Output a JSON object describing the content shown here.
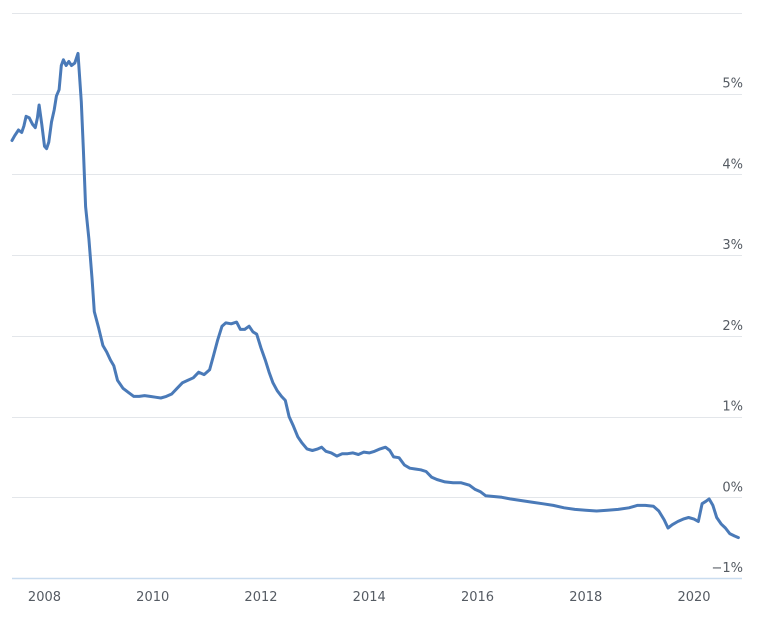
{
  "chart_data": {
    "type": "line",
    "title": "",
    "xlabel": "",
    "ylabel": "",
    "x_tick_labels": [
      "2008",
      "2010",
      "2012",
      "2014",
      "2016",
      "2018",
      "2020"
    ],
    "y_tick_labels": [
      "−1%",
      "0%",
      "1%",
      "2%",
      "3%",
      "4%",
      "5%"
    ],
    "y_tick_values": [
      -1,
      0,
      1,
      2,
      3,
      4,
      5
    ],
    "xlim": [
      2007.4,
      2020.85
    ],
    "ylim": [
      -1,
      6
    ],
    "y_axis_side": "right",
    "grid": true,
    "colors": {
      "series": "#4a7ab8",
      "grid": "#e3e6ea",
      "axis": "#c9dcef",
      "text": "#555b63"
    },
    "series": [
      {
        "values": [
          [
            2007.4,
            4.42
          ],
          [
            2007.45,
            4.48
          ],
          [
            2007.52,
            4.55
          ],
          [
            2007.58,
            4.52
          ],
          [
            2007.62,
            4.6
          ],
          [
            2007.66,
            4.72
          ],
          [
            2007.72,
            4.7
          ],
          [
            2007.78,
            4.62
          ],
          [
            2007.83,
            4.58
          ],
          [
            2007.87,
            4.7
          ],
          [
            2007.9,
            4.86
          ],
          [
            2007.95,
            4.62
          ],
          [
            2008.0,
            4.35
          ],
          [
            2008.04,
            4.32
          ],
          [
            2008.08,
            4.4
          ],
          [
            2008.13,
            4.65
          ],
          [
            2008.18,
            4.8
          ],
          [
            2008.22,
            4.97
          ],
          [
            2008.27,
            5.05
          ],
          [
            2008.31,
            5.35
          ],
          [
            2008.35,
            5.42
          ],
          [
            2008.4,
            5.35
          ],
          [
            2008.45,
            5.4
          ],
          [
            2008.5,
            5.35
          ],
          [
            2008.56,
            5.38
          ],
          [
            2008.62,
            5.5
          ],
          [
            2008.68,
            4.9
          ],
          [
            2008.72,
            4.3
          ],
          [
            2008.76,
            3.6
          ],
          [
            2008.82,
            3.2
          ],
          [
            2008.88,
            2.7
          ],
          [
            2008.92,
            2.3
          ],
          [
            2009.0,
            2.1
          ],
          [
            2009.08,
            1.88
          ],
          [
            2009.15,
            1.8
          ],
          [
            2009.22,
            1.7
          ],
          [
            2009.28,
            1.63
          ],
          [
            2009.35,
            1.45
          ],
          [
            2009.45,
            1.35
          ],
          [
            2009.55,
            1.3
          ],
          [
            2009.65,
            1.25
          ],
          [
            2009.75,
            1.25
          ],
          [
            2009.85,
            1.26
          ],
          [
            2009.95,
            1.25
          ],
          [
            2010.05,
            1.24
          ],
          [
            2010.15,
            1.23
          ],
          [
            2010.25,
            1.25
          ],
          [
            2010.35,
            1.28
          ],
          [
            2010.45,
            1.35
          ],
          [
            2010.55,
            1.42
          ],
          [
            2010.65,
            1.45
          ],
          [
            2010.75,
            1.48
          ],
          [
            2010.85,
            1.55
          ],
          [
            2010.95,
            1.52
          ],
          [
            2011.05,
            1.58
          ],
          [
            2011.12,
            1.75
          ],
          [
            2011.2,
            1.95
          ],
          [
            2011.28,
            2.12
          ],
          [
            2011.35,
            2.16
          ],
          [
            2011.45,
            2.15
          ],
          [
            2011.55,
            2.17
          ],
          [
            2011.62,
            2.08
          ],
          [
            2011.7,
            2.08
          ],
          [
            2011.78,
            2.12
          ],
          [
            2011.85,
            2.05
          ],
          [
            2011.92,
            2.02
          ],
          [
            2012.0,
            1.85
          ],
          [
            2012.08,
            1.7
          ],
          [
            2012.15,
            1.55
          ],
          [
            2012.22,
            1.42
          ],
          [
            2012.3,
            1.32
          ],
          [
            2012.38,
            1.25
          ],
          [
            2012.45,
            1.2
          ],
          [
            2012.52,
            1.0
          ],
          [
            2012.6,
            0.88
          ],
          [
            2012.68,
            0.75
          ],
          [
            2012.75,
            0.68
          ],
          [
            2012.85,
            0.6
          ],
          [
            2012.95,
            0.58
          ],
          [
            2013.05,
            0.6
          ],
          [
            2013.12,
            0.62
          ],
          [
            2013.2,
            0.57
          ],
          [
            2013.3,
            0.55
          ],
          [
            2013.4,
            0.51
          ],
          [
            2013.5,
            0.54
          ],
          [
            2013.6,
            0.54
          ],
          [
            2013.7,
            0.55
          ],
          [
            2013.8,
            0.53
          ],
          [
            2013.9,
            0.56
          ],
          [
            2014.0,
            0.55
          ],
          [
            2014.1,
            0.57
          ],
          [
            2014.2,
            0.6
          ],
          [
            2014.3,
            0.62
          ],
          [
            2014.38,
            0.58
          ],
          [
            2014.45,
            0.5
          ],
          [
            2014.55,
            0.49
          ],
          [
            2014.65,
            0.4
          ],
          [
            2014.75,
            0.36
          ],
          [
            2014.85,
            0.35
          ],
          [
            2014.95,
            0.34
          ],
          [
            2015.05,
            0.32
          ],
          [
            2015.15,
            0.25
          ],
          [
            2015.25,
            0.22
          ],
          [
            2015.4,
            0.19
          ],
          [
            2015.55,
            0.18
          ],
          [
            2015.7,
            0.18
          ],
          [
            2015.85,
            0.15
          ],
          [
            2015.95,
            0.1
          ],
          [
            2016.05,
            0.07
          ],
          [
            2016.15,
            0.02
          ],
          [
            2016.3,
            0.01
          ],
          [
            2016.45,
            0.0
          ],
          [
            2016.6,
            -0.02
          ],
          [
            2016.8,
            -0.04
          ],
          [
            2017.0,
            -0.06
          ],
          [
            2017.2,
            -0.08
          ],
          [
            2017.4,
            -0.1
          ],
          [
            2017.6,
            -0.13
          ],
          [
            2017.8,
            -0.15
          ],
          [
            2018.0,
            -0.16
          ],
          [
            2018.2,
            -0.17
          ],
          [
            2018.4,
            -0.16
          ],
          [
            2018.6,
            -0.15
          ],
          [
            2018.8,
            -0.13
          ],
          [
            2018.95,
            -0.1
          ],
          [
            2019.1,
            -0.1
          ],
          [
            2019.25,
            -0.11
          ],
          [
            2019.35,
            -0.17
          ],
          [
            2019.45,
            -0.28
          ],
          [
            2019.52,
            -0.38
          ],
          [
            2019.6,
            -0.34
          ],
          [
            2019.7,
            -0.3
          ],
          [
            2019.8,
            -0.27
          ],
          [
            2019.9,
            -0.25
          ],
          [
            2020.0,
            -0.27
          ],
          [
            2020.08,
            -0.3
          ],
          [
            2020.15,
            -0.08
          ],
          [
            2020.22,
            -0.05
          ],
          [
            2020.28,
            -0.02
          ],
          [
            2020.35,
            -0.1
          ],
          [
            2020.42,
            -0.25
          ],
          [
            2020.5,
            -0.33
          ],
          [
            2020.58,
            -0.38
          ],
          [
            2020.66,
            -0.45
          ],
          [
            2020.75,
            -0.48
          ],
          [
            2020.82,
            -0.5
          ]
        ]
      }
    ]
  }
}
